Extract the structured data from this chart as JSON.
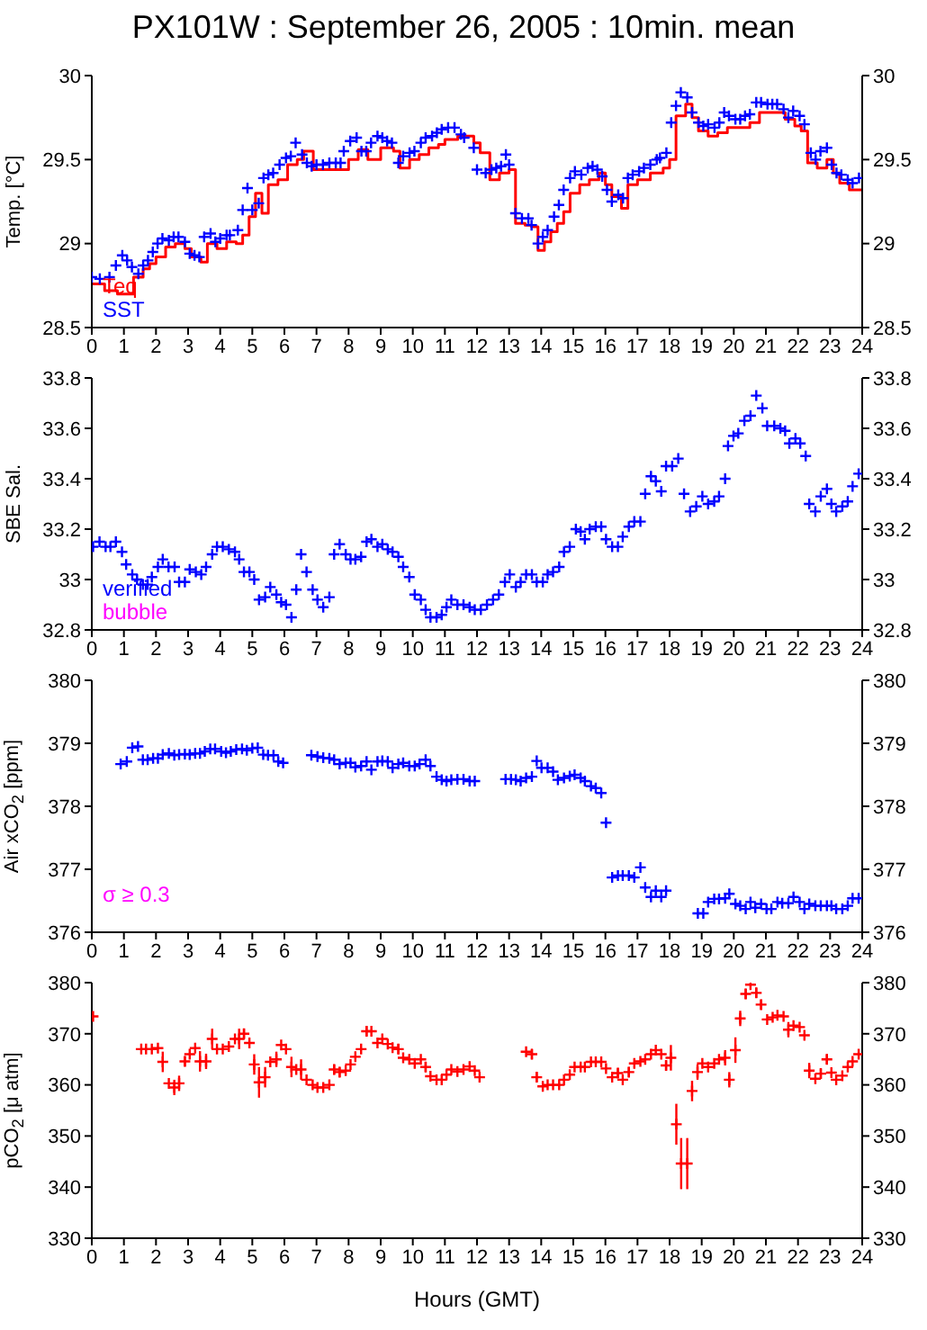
{
  "chart_data": [
    {
      "type": "scatter",
      "title": "PX101W : September 26, 2005 : 10min. mean",
      "ylabel": "Temp. [°C]",
      "xlim": [
        0,
        24
      ],
      "xticks": [
        0,
        1,
        2,
        3,
        4,
        5,
        6,
        7,
        8,
        9,
        10,
        11,
        12,
        13,
        14,
        15,
        16,
        17,
        18,
        19,
        20,
        21,
        22,
        23,
        24
      ],
      "ylim": [
        28.5,
        30
      ],
      "yticks": [
        28.5,
        29,
        29.5,
        30
      ],
      "y2lim": [
        28.5,
        30
      ],
      "y2ticks": [
        28.5,
        29,
        29.5,
        30
      ],
      "marker": "cross",
      "legend": "bottom left",
      "series": [
        {
          "name": "Teq",
          "color": "#ff0000",
          "type": "step",
          "marker": "none",
          "x": [
            0,
            0.4,
            0.8,
            1.3,
            1.6,
            1.8,
            2.0,
            2.3,
            2.6,
            2.9,
            3.1,
            3.4,
            3.6,
            3.9,
            4.2,
            4.5,
            4.7,
            4.9,
            5.1,
            5.3,
            5.5,
            5.8,
            6.1,
            6.4,
            6.6,
            6.9,
            7.3,
            7.7,
            8.0,
            8.3,
            8.6,
            9.0,
            9.4,
            9.6,
            9.9,
            10.2,
            10.5,
            10.8,
            11.0,
            11.4,
            11.7,
            11.9,
            12.1,
            12.4,
            12.7,
            13.0,
            13.2,
            13.5,
            13.7,
            13.9,
            14.1,
            14.3,
            14.5,
            14.7,
            14.9,
            15.2,
            15.5,
            15.8,
            16.0,
            16.2,
            16.5,
            16.7,
            17.0,
            17.4,
            17.8,
            18.0,
            18.2,
            18.5,
            18.7,
            18.9,
            19.2,
            19.5,
            19.8,
            20.1,
            20.5,
            20.8,
            21.3,
            21.6,
            21.9,
            22.1,
            22.3,
            22.6,
            22.9,
            23.1,
            23.3,
            23.6,
            24
          ],
          "values": [
            28.76,
            28.72,
            28.7,
            28.8,
            28.85,
            28.88,
            28.92,
            28.98,
            29.0,
            28.97,
            28.92,
            28.89,
            29.0,
            28.97,
            29.01,
            29.0,
            29.05,
            29.16,
            29.3,
            29.18,
            29.35,
            29.38,
            29.47,
            29.5,
            29.55,
            29.44,
            29.44,
            29.44,
            29.5,
            29.56,
            29.5,
            29.57,
            29.55,
            29.45,
            29.5,
            29.53,
            29.57,
            29.59,
            29.62,
            29.64,
            29.64,
            29.6,
            29.54,
            29.38,
            29.42,
            29.44,
            29.12,
            29.11,
            29.1,
            28.96,
            29.01,
            29.07,
            29.12,
            29.19,
            29.3,
            29.35,
            29.38,
            29.42,
            29.35,
            29.28,
            29.21,
            29.35,
            29.38,
            29.42,
            29.45,
            29.5,
            29.76,
            29.83,
            29.75,
            29.67,
            29.64,
            29.66,
            29.69,
            29.69,
            29.72,
            29.78,
            29.78,
            29.74,
            29.7,
            29.67,
            29.48,
            29.45,
            29.5,
            29.42,
            29.36,
            29.32,
            29.32
          ]
        },
        {
          "name": "SST",
          "color": "#0000ff",
          "x": [
            0.0,
            0.25,
            0.55,
            0.75,
            0.95,
            1.1,
            1.25,
            1.45,
            1.6,
            1.75,
            1.9,
            2.05,
            2.2,
            2.4,
            2.55,
            2.7,
            2.9,
            3.05,
            3.2,
            3.35,
            3.5,
            3.7,
            3.85,
            4.0,
            4.2,
            4.3,
            4.55,
            4.7,
            4.85,
            5.0,
            5.2,
            5.35,
            5.5,
            5.65,
            5.85,
            6.05,
            6.2,
            6.35,
            6.55,
            6.7,
            6.85,
            7.0,
            7.2,
            7.4,
            7.6,
            7.75,
            7.85,
            8.05,
            8.25,
            8.4,
            8.55,
            8.7,
            8.9,
            9.05,
            9.2,
            9.35,
            9.55,
            9.7,
            9.9,
            10.05,
            10.25,
            10.4,
            10.6,
            10.75,
            10.9,
            11.1,
            11.3,
            11.5,
            11.6,
            11.9,
            12.0,
            12.27,
            12.45,
            12.6,
            12.75,
            12.9,
            13.0,
            13.2,
            13.4,
            13.6,
            13.7,
            13.9,
            14.05,
            14.2,
            14.4,
            14.55,
            14.7,
            14.9,
            15.05,
            15.25,
            15.45,
            15.6,
            15.75,
            15.9,
            16.05,
            16.2,
            16.4,
            16.55,
            16.7,
            16.85,
            17.05,
            17.2,
            17.4,
            17.6,
            17.7,
            17.9,
            18.05,
            18.2,
            18.35,
            18.55,
            18.7,
            18.9,
            19.05,
            19.2,
            19.4,
            19.55,
            19.7,
            19.85,
            20.05,
            20.2,
            20.35,
            20.5,
            20.7,
            20.85,
            21.05,
            21.2,
            21.35,
            21.55,
            21.7,
            21.85,
            22.05,
            22.2,
            22.4,
            22.55,
            22.7,
            22.9,
            23.05,
            23.2,
            23.35,
            23.55,
            23.7,
            23.9
          ],
          "values": [
            28.8,
            28.79,
            28.8,
            28.87,
            28.93,
            28.9,
            28.86,
            28.82,
            28.87,
            28.9,
            28.95,
            29.0,
            29.03,
            29.02,
            29.04,
            29.04,
            29.01,
            28.94,
            28.93,
            28.92,
            29.04,
            29.06,
            29.01,
            29.03,
            29.05,
            29.05,
            29.08,
            29.2,
            29.33,
            29.2,
            29.24,
            29.39,
            29.41,
            29.42,
            29.47,
            29.51,
            29.52,
            29.6,
            29.53,
            29.48,
            29.46,
            29.47,
            29.47,
            29.48,
            29.48,
            29.48,
            29.55,
            29.61,
            29.63,
            29.55,
            29.55,
            29.6,
            29.64,
            29.63,
            29.61,
            29.6,
            29.48,
            29.52,
            29.54,
            29.55,
            29.6,
            29.63,
            29.64,
            29.66,
            29.68,
            29.69,
            29.69,
            29.65,
            29.63,
            29.57,
            29.44,
            29.42,
            29.44,
            29.45,
            29.46,
            29.53,
            29.47,
            29.18,
            29.15,
            29.15,
            29.11,
            29.0,
            29.04,
            29.08,
            29.16,
            29.23,
            29.32,
            29.39,
            29.43,
            29.41,
            29.45,
            29.46,
            29.44,
            29.4,
            29.32,
            29.25,
            29.29,
            29.27,
            29.39,
            29.41,
            29.43,
            29.45,
            29.47,
            29.5,
            29.51,
            29.54,
            29.72,
            29.82,
            29.9,
            29.87,
            29.78,
            29.72,
            29.7,
            29.71,
            29.69,
            29.72,
            29.78,
            29.76,
            29.74,
            29.74,
            29.76,
            29.77,
            29.84,
            29.84,
            29.83,
            29.83,
            29.83,
            29.8,
            29.75,
            29.79,
            29.76,
            29.71,
            29.54,
            29.5,
            29.55,
            29.57,
            29.47,
            29.42,
            29.41,
            29.38,
            29.36,
            29.39
          ]
        }
      ]
    },
    {
      "type": "scatter",
      "ylabel": "SBE Sal.",
      "xlim": [
        0,
        24
      ],
      "xticks": [
        0,
        1,
        2,
        3,
        4,
        5,
        6,
        7,
        8,
        9,
        10,
        11,
        12,
        13,
        14,
        15,
        16,
        17,
        18,
        19,
        20,
        21,
        22,
        23,
        24
      ],
      "ylim": [
        32.8,
        33.8
      ],
      "yticks": [
        32.8,
        33,
        33.2,
        33.4,
        33.6,
        33.8
      ],
      "y2lim": [
        32.8,
        33.8
      ],
      "y2ticks": [
        32.8,
        33,
        33.2,
        33.4,
        33.6,
        33.8
      ],
      "marker": "cross",
      "legend": "bottom left",
      "series": [
        {
          "name": "verified",
          "color": "#0000ff",
          "x": [
            0.04,
            0.24,
            0.43,
            0.58,
            0.75,
            0.94,
            1.07,
            1.26,
            1.41,
            1.59,
            1.74,
            1.87,
            2.06,
            2.21,
            2.39,
            2.58,
            2.72,
            2.9,
            3.05,
            3.24,
            3.41,
            3.56,
            3.75,
            3.9,
            4.08,
            4.27,
            4.46,
            4.59,
            4.74,
            4.91,
            5.06,
            5.21,
            5.4,
            5.56,
            5.75,
            5.9,
            6.05,
            6.22,
            6.37,
            6.52,
            6.69,
            6.88,
            7.03,
            7.21,
            7.4,
            7.55,
            7.72,
            7.91,
            8.06,
            8.21,
            8.39,
            8.56,
            8.71,
            8.9,
            9.05,
            9.22,
            9.37,
            9.55,
            9.7,
            9.89,
            10.06,
            10.25,
            10.4,
            10.55,
            10.74,
            10.9,
            11.05,
            11.2,
            11.39,
            11.58,
            11.77,
            11.93,
            12.12,
            12.31,
            12.5,
            12.68,
            12.87,
            13.02,
            13.21,
            13.36,
            13.53,
            13.71,
            13.86,
            14.05,
            14.2,
            14.37,
            14.56,
            14.71,
            14.89,
            15.08,
            15.23,
            15.36,
            15.51,
            15.7,
            15.87,
            16.02,
            16.21,
            16.39,
            16.54,
            16.73,
            16.9,
            17.09,
            17.24,
            17.42,
            17.57,
            17.74,
            17.89,
            18.08,
            18.27,
            18.45,
            18.64,
            18.83,
            19.02,
            19.2,
            19.39,
            19.54,
            19.73,
            19.82,
            19.99,
            20.14,
            20.33,
            20.52,
            20.7,
            20.89,
            21.04,
            21.26,
            21.45,
            21.6,
            21.73,
            21.92,
            22.07,
            22.24,
            22.35,
            22.54,
            22.71,
            22.9,
            23.04,
            23.19,
            23.38,
            23.55,
            23.7,
            23.89
          ],
          "values": [
            33.13,
            33.15,
            33.13,
            33.13,
            33.15,
            33.11,
            33.06,
            33.02,
            33.0,
            32.98,
            32.98,
            33.01,
            33.05,
            33.08,
            33.05,
            33.05,
            32.99,
            32.99,
            33.04,
            33.03,
            33.02,
            33.05,
            33.1,
            33.13,
            33.13,
            33.12,
            33.11,
            33.08,
            33.03,
            33.03,
            33.0,
            32.92,
            32.93,
            32.97,
            32.94,
            32.91,
            32.9,
            32.85,
            32.96,
            33.1,
            33.03,
            32.96,
            32.92,
            32.89,
            32.93,
            33.1,
            33.14,
            33.1,
            33.08,
            33.08,
            33.09,
            33.15,
            33.16,
            33.13,
            33.14,
            33.12,
            33.11,
            33.09,
            33.05,
            33.01,
            32.94,
            32.92,
            32.88,
            32.85,
            32.85,
            32.86,
            32.89,
            32.92,
            32.9,
            32.9,
            32.89,
            32.88,
            32.88,
            32.9,
            32.92,
            32.94,
            32.99,
            33.02,
            32.97,
            32.99,
            33.02,
            33.02,
            32.99,
            32.99,
            33.02,
            33.03,
            33.05,
            33.11,
            33.13,
            33.2,
            33.19,
            33.16,
            33.2,
            33.21,
            33.21,
            33.16,
            33.13,
            33.13,
            33.17,
            33.21,
            33.23,
            33.23,
            33.34,
            33.41,
            33.39,
            33.35,
            33.45,
            33.45,
            33.48,
            33.34,
            33.27,
            33.29,
            33.33,
            33.3,
            33.31,
            33.33,
            33.4,
            33.53,
            33.57,
            33.58,
            33.63,
            33.65,
            33.73,
            33.68,
            33.61,
            33.61,
            33.6,
            33.59,
            33.54,
            33.56,
            33.54,
            33.49,
            33.3,
            33.27,
            33.33,
            33.36,
            33.3,
            33.27,
            33.29,
            33.31,
            33.37,
            33.42
          ]
        },
        {
          "name": "bubble",
          "color": "#ff00ff"
        }
      ]
    },
    {
      "type": "scatter",
      "ylabel": "Air xCO$_{2}$ [ppm]",
      "xlim": [
        0,
        24
      ],
      "xticks": [
        0,
        1,
        2,
        3,
        4,
        5,
        6,
        7,
        8,
        9,
        10,
        11,
        12,
        13,
        14,
        15,
        16,
        17,
        18,
        19,
        20,
        21,
        22,
        23,
        24
      ],
      "ylim": [
        376,
        380
      ],
      "yticks": [
        376,
        377,
        378,
        379,
        380
      ],
      "y2lim": [
        376,
        380
      ],
      "y2ticks": [
        376,
        377,
        378,
        379,
        380
      ],
      "marker": "cross",
      "annotations": [
        "σ ≥ 0.3"
      ],
      "series": [
        {
          "color": "#0000ff",
          "x": [
            0.9,
            1.09,
            1.26,
            1.44,
            1.59,
            1.74,
            1.91,
            2.06,
            2.21,
            2.4,
            2.57,
            2.72,
            2.9,
            3.05,
            3.22,
            3.37,
            3.52,
            3.69,
            3.84,
            4.03,
            4.18,
            4.33,
            4.5,
            4.68,
            4.83,
            5.0,
            5.17,
            5.34,
            5.49,
            5.66,
            5.81,
            5.96,
            6.84,
            7.03,
            7.21,
            7.4,
            7.55,
            7.72,
            7.91,
            8.06,
            8.21,
            8.39,
            8.56,
            8.71,
            8.9,
            9.05,
            9.22,
            9.37,
            9.55,
            9.7,
            9.89,
            10.06,
            10.21,
            10.4,
            10.55,
            10.74,
            10.9,
            11.05,
            11.2,
            11.39,
            11.58,
            11.77,
            11.93,
            12.89,
            13.06,
            13.21,
            13.36,
            13.53,
            13.71,
            13.86,
            14.01,
            14.2,
            14.37,
            14.52,
            14.71,
            14.89,
            15.04,
            15.23,
            15.36,
            15.55,
            15.7,
            15.87,
            16.02,
            16.21,
            16.39,
            16.54,
            16.73,
            16.9,
            17.09,
            17.24,
            17.42,
            17.57,
            17.74,
            17.89,
            18.88,
            19.05,
            19.2,
            19.39,
            19.54,
            19.73,
            19.86,
            20.05,
            20.2,
            20.37,
            20.52,
            20.67,
            20.85,
            21.02,
            21.17,
            21.36,
            21.51,
            21.7,
            21.86,
            22.05,
            22.2,
            22.35,
            22.54,
            22.71,
            22.9,
            23.04,
            23.19,
            23.38,
            23.55,
            23.7,
            23.89
          ],
          "values": [
            378.67,
            378.71,
            378.93,
            378.95,
            378.74,
            378.74,
            378.76,
            378.76,
            378.82,
            378.84,
            378.81,
            378.82,
            378.83,
            378.82,
            378.84,
            378.84,
            378.87,
            378.91,
            378.91,
            378.87,
            378.85,
            378.87,
            378.9,
            378.91,
            378.89,
            378.92,
            378.93,
            378.82,
            378.81,
            378.81,
            378.71,
            378.69,
            378.81,
            378.79,
            378.77,
            378.76,
            378.74,
            378.67,
            378.69,
            378.69,
            378.62,
            378.64,
            378.71,
            378.58,
            378.71,
            378.72,
            378.71,
            378.61,
            378.67,
            378.69,
            378.64,
            378.64,
            378.67,
            378.74,
            378.64,
            378.47,
            378.42,
            378.4,
            378.42,
            378.43,
            378.43,
            378.4,
            378.4,
            378.43,
            378.43,
            378.42,
            378.4,
            378.45,
            378.47,
            378.72,
            378.61,
            378.61,
            378.55,
            378.42,
            378.45,
            378.48,
            378.5,
            378.45,
            378.4,
            378.32,
            378.29,
            378.21,
            377.74,
            376.87,
            376.9,
            376.9,
            376.9,
            376.87,
            377.03,
            376.71,
            376.56,
            376.66,
            376.56,
            376.66,
            376.3,
            376.3,
            376.48,
            376.53,
            376.53,
            376.54,
            376.61,
            376.45,
            376.42,
            376.37,
            376.48,
            376.39,
            376.45,
            376.37,
            376.37,
            376.48,
            376.46,
            376.46,
            376.56,
            376.48,
            376.37,
            376.45,
            376.42,
            376.42,
            376.42,
            376.42,
            376.37,
            376.37,
            376.42,
            376.54,
            376.54
          ]
        }
      ]
    },
    {
      "type": "scatter",
      "ylabel": "pCO$_{2}$ [μ atm]",
      "xlabel": "Hours (GMT)",
      "xlim": [
        0,
        24
      ],
      "xticks": [
        0,
        1,
        2,
        3,
        4,
        5,
        6,
        7,
        8,
        9,
        10,
        11,
        12,
        13,
        14,
        15,
        16,
        17,
        18,
        19,
        20,
        21,
        22,
        23,
        24
      ],
      "ylim": [
        330,
        380
      ],
      "yticks": [
        330,
        340,
        350,
        360,
        370,
        380
      ],
      "y2lim": [
        330,
        380
      ],
      "y2ticks": [
        330,
        340,
        350,
        360,
        370,
        380
      ],
      "marker": "cross",
      "series": [
        {
          "color": "#ff0000",
          "x": [
            0.04,
            1.54,
            1.69,
            1.87,
            2.06,
            2.21,
            2.4,
            2.57,
            2.72,
            2.9,
            3.05,
            3.22,
            3.37,
            3.56,
            3.75,
            3.9,
            4.08,
            4.27,
            4.46,
            4.59,
            4.74,
            4.91,
            5.06,
            5.21,
            5.4,
            5.56,
            5.75,
            5.9,
            6.05,
            6.22,
            6.37,
            6.52,
            6.69,
            6.88,
            7.03,
            7.21,
            7.4,
            7.55,
            7.72,
            7.91,
            8.06,
            8.21,
            8.39,
            8.56,
            8.71,
            8.9,
            9.05,
            9.22,
            9.37,
            9.55,
            9.7,
            9.89,
            10.06,
            10.25,
            10.4,
            10.55,
            10.74,
            10.9,
            11.05,
            11.2,
            11.39,
            11.58,
            11.77,
            11.93,
            12.08,
            13.53,
            13.71,
            13.86,
            14.05,
            14.2,
            14.37,
            14.56,
            14.71,
            14.89,
            15.04,
            15.23,
            15.36,
            15.55,
            15.7,
            15.87,
            16.02,
            16.21,
            16.39,
            16.54,
            16.73,
            16.9,
            17.09,
            17.24,
            17.42,
            17.57,
            17.74,
            17.89,
            18.04,
            18.21,
            18.36,
            18.55,
            18.7,
            18.87,
            19.02,
            19.2,
            19.39,
            19.54,
            19.73,
            19.86,
            20.05,
            20.2,
            20.37,
            20.52,
            20.7,
            20.85,
            21.04,
            21.21,
            21.36,
            21.55,
            21.7,
            21.86,
            22.05,
            22.2,
            22.35,
            22.54,
            22.71,
            22.9,
            23.04,
            23.19,
            23.38,
            23.55,
            23.7,
            23.89
          ],
          "values": [
            373.4,
            367,
            367,
            367,
            367.2,
            364.5,
            360.3,
            359.5,
            360.3,
            364.6,
            366,
            367.2,
            364.6,
            364.6,
            369,
            367,
            367,
            367.5,
            369,
            369,
            370,
            368.2,
            364,
            360.5,
            361.5,
            364.5,
            365,
            367.8,
            367,
            363.5,
            363,
            363,
            361,
            360,
            359.5,
            359.5,
            360,
            363,
            362.5,
            362.8,
            364,
            365.5,
            367,
            370.5,
            370.5,
            368.2,
            369,
            368,
            367.3,
            367,
            365.3,
            365,
            364.2,
            365,
            363.5,
            361.7,
            361,
            361,
            362,
            363,
            362.6,
            363,
            363.6,
            362.8,
            361.5,
            366.5,
            366,
            361.5,
            359.7,
            360,
            360,
            360,
            361,
            362,
            363.5,
            363.5,
            363.5,
            364.5,
            364.5,
            364.5,
            363.2,
            361.5,
            362.3,
            361,
            362.5,
            364.2,
            364.6,
            365,
            366,
            366.8,
            366,
            363.8,
            365.3,
            352.3,
            344.6,
            344.6,
            358.8,
            362.5,
            364.2,
            363.5,
            364.2,
            365,
            365.3,
            361,
            366.8,
            373,
            377.8,
            379.6,
            378,
            375.7,
            372.8,
            373.2,
            373.6,
            373.4,
            370.8,
            371.6,
            371.3,
            369.7,
            362.8,
            361.2,
            362.2,
            365,
            362.4,
            361,
            361.8,
            363.5,
            364.6,
            366
          ],
          "errors": [
            null,
            null,
            null,
            null,
            null,
            2,
            null,
            1.5,
            1.5,
            1,
            null,
            null,
            2,
            1.5,
            2,
            null,
            null,
            null,
            null,
            2,
            1,
            null,
            2,
            3,
            2,
            null,
            1.5,
            null,
            null,
            2,
            null,
            2,
            null,
            null,
            null,
            null,
            null,
            1,
            1,
            null,
            null,
            null,
            null,
            1,
            null,
            null,
            null,
            null,
            null,
            1,
            null,
            null,
            null,
            null,
            1,
            null,
            null,
            null,
            null,
            null,
            null,
            null,
            null,
            null,
            null,
            null,
            1,
            1,
            null,
            null,
            null,
            null,
            null,
            null,
            null,
            null,
            null,
            null,
            null,
            null,
            null,
            null,
            1,
            null,
            1,
            null,
            null,
            null,
            null,
            null,
            null,
            1,
            2.5,
            4,
            5,
            5,
            2,
            1.5,
            null,
            null,
            null,
            null,
            1.5,
            1.5,
            2.5,
            1.5,
            1,
            null,
            1,
            1,
            null,
            null,
            null,
            null,
            1.5,
            null,
            null,
            null,
            1.5,
            null,
            1,
            1,
            null,
            null,
            null,
            null,
            null,
            null
          ]
        }
      ]
    }
  ]
}
